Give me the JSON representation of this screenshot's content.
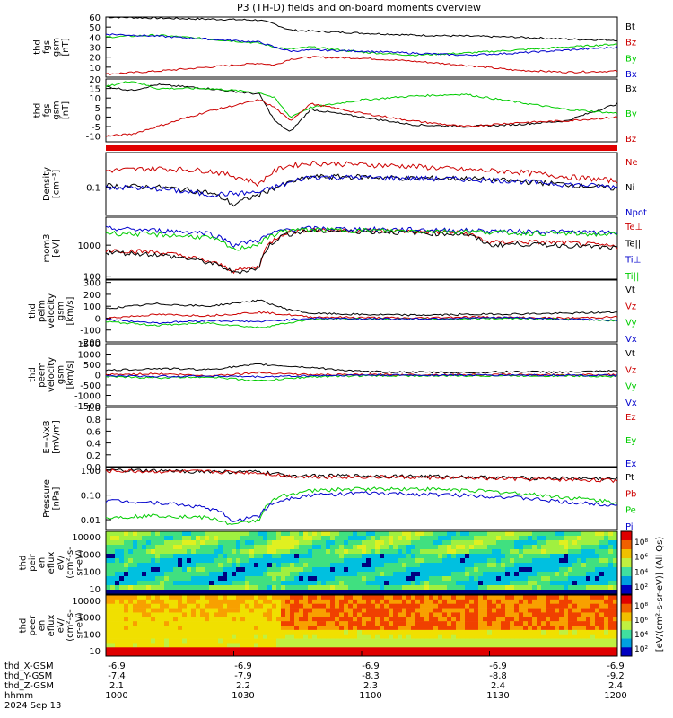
{
  "title": "P3 (TH-D) fields and on-board moments overview",
  "footer": {
    "rows": [
      {
        "label": "thd_X-GSM",
        "values": [
          "-6.9",
          "-6.9",
          "-6.9",
          "-6.9",
          "-6.9"
        ]
      },
      {
        "label": "thd_Y-GSM",
        "values": [
          "-7.4",
          "-7.9",
          "-8.3",
          "-8.8",
          "-9.2"
        ]
      },
      {
        "label": "thd_Z-GSM",
        "values": [
          "2.1",
          "2.2",
          "2.3",
          "2.4",
          "2.4"
        ]
      },
      {
        "label": "hhmm",
        "values": [
          "1000",
          "1030",
          "1100",
          "1130",
          "1200"
        ]
      }
    ],
    "date": "2024 Sep 13"
  },
  "colorbar": {
    "label": "[eV/(cm²-s-sr-eV)] (All Qs)",
    "upper_ticks": [
      "10⁸",
      "10⁶",
      "10⁴",
      "10²"
    ],
    "lower_ticks": [
      "10⁸",
      "10⁶",
      "10⁴",
      "10²"
    ]
  },
  "chart_data": [
    {
      "type": "line",
      "ylabel": [
        "thd",
        "fgs",
        "gsm",
        "[nT]"
      ],
      "ylim": [
        0,
        60
      ],
      "yticks": [
        "60",
        "50",
        "40",
        "30",
        "20",
        "10"
      ],
      "series": [
        {
          "name": "Bt",
          "color": "#000000",
          "x": [
            0,
            0.1,
            0.2,
            0.3,
            0.33,
            0.36,
            0.4,
            0.5,
            0.6,
            0.7,
            0.8,
            0.9,
            1
          ],
          "y": [
            60,
            59,
            58,
            57,
            53,
            47,
            46,
            44,
            42,
            41,
            40,
            38,
            37
          ]
        },
        {
          "name": "Bz",
          "color": "#cc0000",
          "x": [
            0,
            0.1,
            0.2,
            0.3,
            0.33,
            0.36,
            0.4,
            0.5,
            0.6,
            0.7,
            0.8,
            0.9,
            1
          ],
          "y": [
            3,
            6,
            10,
            14,
            12,
            18,
            20,
            19,
            16,
            12,
            7,
            5,
            6
          ]
        },
        {
          "name": "By",
          "color": "#00cc00",
          "x": [
            0,
            0.1,
            0.2,
            0.3,
            0.33,
            0.36,
            0.4,
            0.5,
            0.6,
            0.7,
            0.8,
            0.9,
            1
          ],
          "y": [
            40,
            42,
            38,
            34,
            30,
            28,
            30,
            25,
            22,
            24,
            27,
            30,
            33
          ]
        },
        {
          "name": "Bx",
          "color": "#0000cc",
          "x": [
            0,
            0.1,
            0.2,
            0.3,
            0.33,
            0.36,
            0.4,
            0.5,
            0.6,
            0.7,
            0.8,
            0.9,
            1
          ],
          "y": [
            43,
            41,
            38,
            35,
            30,
            26,
            27,
            26,
            24,
            22,
            24,
            27,
            30
          ]
        }
      ]
    },
    {
      "type": "line",
      "ylabel": [
        "thd",
        "fgs",
        "gsm",
        "[nT]"
      ],
      "ylim": [
        -13,
        20
      ],
      "yticks": [
        "20",
        "15",
        "10",
        "5",
        "0",
        "-5",
        "-10"
      ],
      "series": [
        {
          "name": "Bx",
          "color": "#000000",
          "x": [
            0,
            0.05,
            0.1,
            0.2,
            0.3,
            0.33,
            0.36,
            0.4,
            0.5,
            0.6,
            0.7,
            0.8,
            0.9,
            1
          ],
          "y": [
            16,
            14,
            17,
            15,
            12,
            -2,
            -8,
            4,
            0,
            -4,
            -5,
            -4,
            -2,
            7
          ]
        },
        {
          "name": "By",
          "color": "#00cc00",
          "x": [
            0,
            0.05,
            0.1,
            0.2,
            0.3,
            0.33,
            0.36,
            0.4,
            0.5,
            0.6,
            0.7,
            0.8,
            0.9,
            1
          ],
          "y": [
            16,
            19,
            15,
            15,
            13,
            10,
            0,
            5,
            9,
            11,
            12,
            8,
            4,
            2
          ]
        },
        {
          "name": "Bz",
          "color": "#cc0000",
          "x": [
            0,
            0.05,
            0.1,
            0.2,
            0.3,
            0.33,
            0.36,
            0.4,
            0.5,
            0.6,
            0.7,
            0.8,
            0.9,
            1
          ],
          "y": [
            -10,
            -9,
            -5,
            3,
            9,
            5,
            -2,
            7,
            2,
            -2,
            -5,
            -3,
            -2,
            0
          ]
        }
      ]
    },
    {
      "type": "line",
      "ylabel": [
        "Density",
        "[cm⁻³]"
      ],
      "ylim": [
        0.015,
        1
      ],
      "scale": "log",
      "yticks": [
        "0.1"
      ],
      "series": [
        {
          "name": "Ne",
          "color": "#cc0000",
          "x": [
            0,
            0.1,
            0.2,
            0.3,
            0.35,
            0.4,
            0.5,
            0.6,
            0.7,
            0.8,
            0.9,
            1
          ],
          "y": [
            0.3,
            0.35,
            0.3,
            0.12,
            0.4,
            0.5,
            0.45,
            0.4,
            0.32,
            0.28,
            0.2,
            0.15
          ]
        },
        {
          "name": "Ni",
          "color": "#000000",
          "x": [
            0,
            0.1,
            0.2,
            0.25,
            0.3,
            0.35,
            0.4,
            0.5,
            0.6,
            0.7,
            0.8,
            0.9,
            1
          ],
          "y": [
            0.11,
            0.1,
            0.07,
            0.03,
            0.06,
            0.12,
            0.2,
            0.2,
            0.18,
            0.18,
            0.15,
            0.12,
            0.09
          ]
        },
        {
          "name": "Npot",
          "color": "#0000cc",
          "x": [
            0,
            0.1,
            0.2,
            0.3,
            0.35,
            0.4,
            0.5,
            0.6,
            0.7,
            0.8,
            0.9,
            1
          ],
          "y": [
            0.1,
            0.09,
            0.06,
            0.07,
            0.12,
            0.2,
            0.19,
            0.18,
            0.17,
            0.15,
            0.12,
            0.1
          ]
        }
      ]
    },
    {
      "type": "line",
      "ylabel": [
        "mom3",
        "[eV]"
      ],
      "ylim": [
        80,
        8000
      ],
      "scale": "log",
      "yticks": [
        "1000",
        "100"
      ],
      "series": [
        {
          "name": "Te⊥",
          "color": "#cc0000",
          "x": [
            0,
            0.1,
            0.2,
            0.25,
            0.3,
            0.35,
            0.4,
            0.5,
            0.6,
            0.7,
            0.75,
            0.8,
            0.9,
            1
          ],
          "y": [
            700,
            600,
            300,
            150,
            200,
            2500,
            3200,
            3000,
            2800,
            2500,
            1200,
            1300,
            1200,
            900
          ]
        },
        {
          "name": "Te||",
          "color": "#000000",
          "x": [
            0,
            0.1,
            0.2,
            0.25,
            0.3,
            0.35,
            0.4,
            0.5,
            0.6,
            0.7,
            0.75,
            0.8,
            0.9,
            1
          ],
          "y": [
            600,
            500,
            280,
            130,
            180,
            2200,
            2900,
            2800,
            2500,
            2300,
            1000,
            1100,
            1000,
            800
          ]
        },
        {
          "name": "Ti⊥",
          "color": "#0000cc",
          "x": [
            0,
            0.1,
            0.2,
            0.25,
            0.3,
            0.35,
            0.4,
            0.5,
            0.6,
            0.7,
            0.8,
            0.9,
            1
          ],
          "y": [
            3500,
            3000,
            2500,
            1000,
            1500,
            3200,
            3500,
            3300,
            3200,
            3000,
            2800,
            2700,
            2500
          ]
        },
        {
          "name": "Ti||",
          "color": "#00cc00",
          "x": [
            0,
            0.1,
            0.2,
            0.25,
            0.3,
            0.35,
            0.4,
            0.5,
            0.6,
            0.7,
            0.8,
            0.9,
            1
          ],
          "y": [
            2500,
            2200,
            1800,
            700,
            1100,
            3000,
            3200,
            3000,
            2900,
            2800,
            2500,
            2400,
            2200
          ]
        }
      ]
    },
    {
      "type": "line",
      "ylabel": [
        "thd",
        "peim",
        "velocity",
        "gsm",
        "[km/s]"
      ],
      "ylim": [
        -200,
        320
      ],
      "yticks": [
        "300",
        "200",
        "100",
        "0",
        "-100",
        "-200"
      ],
      "series": [
        {
          "name": "Vt",
          "color": "#000000",
          "x": [
            0,
            0.1,
            0.2,
            0.3,
            0.35,
            0.4,
            0.5,
            0.6,
            0.7,
            0.8,
            0.9,
            1
          ],
          "y": [
            80,
            120,
            100,
            150,
            80,
            40,
            30,
            25,
            30,
            35,
            40,
            50
          ]
        },
        {
          "name": "Vz",
          "color": "#cc0000",
          "x": [
            0,
            0.1,
            0.2,
            0.3,
            0.4,
            0.5,
            0.6,
            0.7,
            0.8,
            0.9,
            1
          ],
          "y": [
            0,
            30,
            20,
            50,
            10,
            5,
            0,
            10,
            5,
            0,
            10
          ]
        },
        {
          "name": "Vy",
          "color": "#00cc00",
          "x": [
            0,
            0.1,
            0.2,
            0.3,
            0.4,
            0.5,
            0.6,
            0.7,
            0.8,
            0.9,
            1
          ],
          "y": [
            -30,
            -60,
            -40,
            -80,
            -10,
            -5,
            -10,
            -5,
            0,
            -10,
            -20
          ]
        },
        {
          "name": "Vx",
          "color": "#0000cc",
          "x": [
            0,
            0.1,
            0.2,
            0.3,
            0.4,
            0.5,
            0.6,
            0.7,
            0.8,
            0.9,
            1
          ],
          "y": [
            -10,
            -40,
            -20,
            -30,
            0,
            -5,
            -5,
            0,
            5,
            -10,
            -15
          ]
        }
      ]
    },
    {
      "type": "line",
      "ylabel": [
        "thd",
        "peem",
        "velocity",
        "gsm",
        "[km/s]"
      ],
      "ylim": [
        -1500,
        1500
      ],
      "yticks": [
        "1500",
        "1000",
        "500",
        "0",
        "-500",
        "-1000",
        "-1500"
      ],
      "series": [
        {
          "name": "Vt",
          "color": "#000000",
          "x": [
            0,
            0.1,
            0.2,
            0.3,
            0.4,
            0.5,
            0.6,
            0.7,
            0.8,
            0.9,
            1
          ],
          "y": [
            200,
            300,
            250,
            500,
            350,
            150,
            120,
            100,
            150,
            120,
            180
          ]
        },
        {
          "name": "Vz",
          "color": "#cc0000",
          "x": [
            0,
            0.1,
            0.2,
            0.3,
            0.4,
            0.5,
            0.6,
            0.7,
            0.8,
            0.9,
            1
          ],
          "y": [
            0,
            50,
            -50,
            100,
            0,
            0,
            0,
            0,
            0,
            0,
            0
          ]
        },
        {
          "name": "Vy",
          "color": "#00cc00",
          "x": [
            0,
            0.1,
            0.2,
            0.3,
            0.4,
            0.5,
            0.6,
            0.7,
            0.8,
            0.9,
            1
          ],
          "y": [
            -100,
            -150,
            -100,
            -300,
            -100,
            -50,
            -50,
            -50,
            -50,
            -50,
            -80
          ]
        },
        {
          "name": "Vx",
          "color": "#0000cc",
          "x": [
            0,
            0.1,
            0.2,
            0.3,
            0.4,
            0.5,
            0.6,
            0.7,
            0.8,
            0.9,
            1
          ],
          "y": [
            -50,
            -80,
            -60,
            -100,
            -50,
            -20,
            -20,
            -20,
            -20,
            -20,
            -40
          ]
        }
      ]
    },
    {
      "type": "line",
      "ylabel": [
        "E=-VxB",
        "[mV/m]"
      ],
      "ylim": [
        0,
        1
      ],
      "yticks": [
        "1.0",
        "0.8",
        "0.6",
        "0.4",
        "0.2",
        "0.0"
      ],
      "series": [
        {
          "name": "Ez",
          "color": "#cc0000",
          "x": [],
          "y": []
        },
        {
          "name": "Ey",
          "color": "#00cc00",
          "x": [],
          "y": []
        },
        {
          "name": "Ex",
          "color": "#0000cc",
          "x": [],
          "y": []
        }
      ]
    },
    {
      "type": "line",
      "ylabel": [
        "Pressure",
        "[nPa]"
      ],
      "ylim": [
        0.004,
        1.3
      ],
      "scale": "log",
      "yticks": [
        "1.00",
        "0.10",
        "0.01"
      ],
      "series": [
        {
          "name": "Pt",
          "color": "#000000",
          "x": [
            0,
            0.1,
            0.2,
            0.3,
            0.35,
            0.4,
            0.5,
            0.6,
            0.7,
            0.8,
            0.9,
            1
          ],
          "y": [
            1.0,
            0.95,
            0.9,
            0.85,
            0.65,
            0.6,
            0.6,
            0.58,
            0.55,
            0.5,
            0.48,
            0.45
          ]
        },
        {
          "name": "Pb",
          "color": "#cc0000",
          "x": [
            0,
            0.1,
            0.2,
            0.3,
            0.35,
            0.4,
            0.5,
            0.6,
            0.7,
            0.8,
            0.9,
            1
          ],
          "y": [
            0.95,
            0.9,
            0.88,
            0.8,
            0.6,
            0.55,
            0.55,
            0.52,
            0.5,
            0.45,
            0.42,
            0.4
          ]
        },
        {
          "name": "Pe",
          "color": "#00cc00",
          "x": [
            0,
            0.1,
            0.2,
            0.25,
            0.3,
            0.35,
            0.4,
            0.5,
            0.6,
            0.7,
            0.8,
            0.9,
            1
          ],
          "y": [
            0.012,
            0.015,
            0.012,
            0.006,
            0.01,
            0.1,
            0.15,
            0.18,
            0.18,
            0.16,
            0.12,
            0.08,
            0.05
          ]
        },
        {
          "name": "Pi",
          "color": "#0000cc",
          "x": [
            0,
            0.1,
            0.2,
            0.25,
            0.3,
            0.35,
            0.4,
            0.5,
            0.6,
            0.7,
            0.8,
            0.9,
            1
          ],
          "y": [
            0.06,
            0.05,
            0.03,
            0.008,
            0.015,
            0.07,
            0.1,
            0.12,
            0.11,
            0.1,
            0.08,
            0.05,
            0.04
          ]
        }
      ]
    },
    {
      "type": "heatmap",
      "ylabel": [
        "thd",
        "peir",
        "en",
        "eflux",
        "eV/",
        "(cm²-s-",
        "sr-eV)"
      ],
      "yticks": [
        "10000",
        "1000",
        "100",
        "10"
      ],
      "scale": "log"
    },
    {
      "type": "heatmap",
      "ylabel": [
        "thd",
        "peer",
        "en",
        "eflux",
        "eV/",
        "(cm²-s-",
        "sr-eV)"
      ],
      "yticks": [
        "10000",
        "1000",
        "100",
        "10"
      ],
      "scale": "log"
    }
  ]
}
